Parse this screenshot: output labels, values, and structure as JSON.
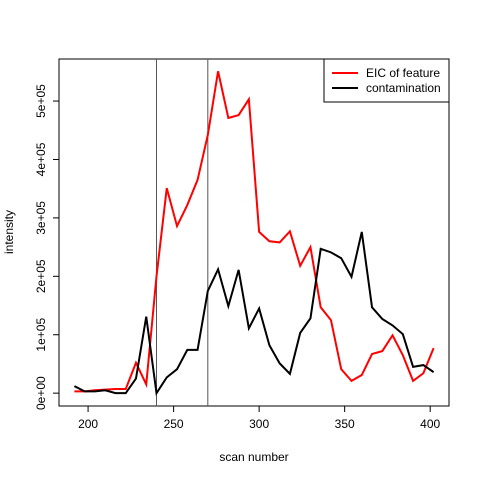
{
  "chart_data": {
    "type": "line",
    "x_label": "scan number",
    "y_label": "intensity",
    "x": [
      192,
      198,
      204,
      210,
      216,
      222,
      228,
      234,
      240,
      246,
      252,
      258,
      264,
      270,
      276,
      282,
      288,
      294,
      300,
      306,
      312,
      318,
      324,
      330,
      336,
      342,
      348,
      354,
      360,
      366,
      372,
      378,
      384,
      390,
      396,
      402
    ],
    "series": [
      {
        "name": "EIC of feature",
        "color": "#ff0000",
        "values": [
          3000,
          3000,
          5000,
          6000,
          7000,
          7000,
          52000,
          15000,
          200000,
          351000,
          286000,
          322000,
          365000,
          442000,
          551000,
          471000,
          476000,
          503000,
          276000,
          260000,
          258000,
          277000,
          218000,
          250000,
          147000,
          125000,
          41000,
          21000,
          31000,
          67000,
          72000,
          99000,
          65000,
          21000,
          34000,
          77000
        ]
      },
      {
        "name": "contamination",
        "color": "#000000",
        "values": [
          12000,
          3000,
          3000,
          5000,
          0,
          0,
          25000,
          131000,
          0,
          27000,
          41000,
          74000,
          74000,
          175000,
          212000,
          149000,
          211000,
          111000,
          145000,
          82000,
          51000,
          33000,
          103000,
          128000,
          247000,
          241000,
          231000,
          199000,
          276000,
          147000,
          127000,
          116000,
          101000,
          45000,
          48000,
          36000
        ]
      }
    ],
    "vlines": [
      240,
      270
    ],
    "xlim": [
      183,
      411
    ],
    "ylim": [
      -22000,
      572000
    ],
    "xticks": [
      200,
      250,
      300,
      350,
      400
    ],
    "yticks": [
      {
        "value": 0,
        "label": "0e+00"
      },
      {
        "value": 100000,
        "label": "1e+05"
      },
      {
        "value": 200000,
        "label": "2e+05"
      },
      {
        "value": 300000,
        "label": "3e+05"
      },
      {
        "value": 400000,
        "label": "4e+05"
      },
      {
        "value": 500000,
        "label": "5e+05"
      }
    ],
    "legend": "top-right"
  }
}
